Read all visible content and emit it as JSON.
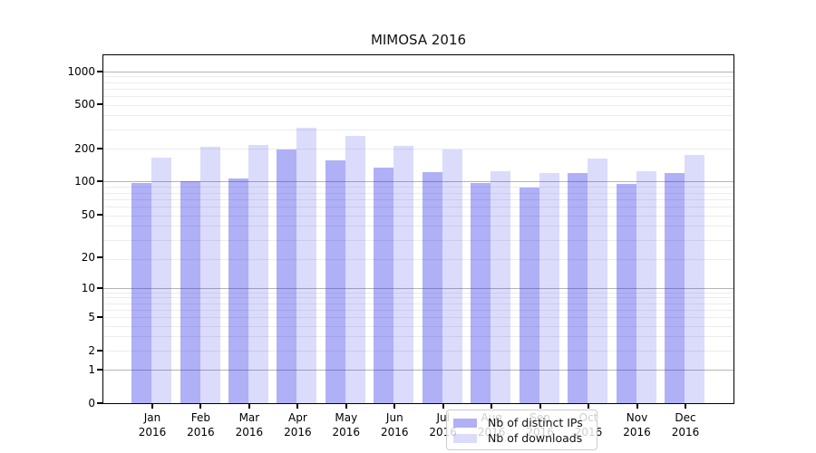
{
  "title": "MIMOSA 2016",
  "chart_data": {
    "type": "bar",
    "title": "MIMOSA 2016",
    "categories": [
      "Jan 2016",
      "Feb 2016",
      "Mar 2016",
      "Apr 2016",
      "May 2016",
      "Jun 2016",
      "Jul 2016",
      "Aug 2016",
      "Sep 2016",
      "Oct 2016",
      "Nov 2016",
      "Dec 2016"
    ],
    "series": [
      {
        "name": "Nb of distinct IPs",
        "color": "rgba(30,30,232,0.35)",
        "values": [
          97,
          101,
          107,
          197,
          155,
          134,
          122,
          96,
          88,
          119,
          95,
          120
        ]
      },
      {
        "name": "Nb of downloads",
        "color": "rgba(30,30,232,0.16)",
        "values": [
          165,
          207,
          217,
          307,
          258,
          210,
          197,
          124,
          119,
          162,
          125,
          175
        ]
      }
    ],
    "xlabel": "",
    "ylabel": "",
    "y_ticks": [
      0,
      1,
      2,
      5,
      10,
      20,
      50,
      100,
      200,
      500,
      1000
    ],
    "y_major_grid_values": [
      1,
      10,
      100,
      1000
    ],
    "y_scale": "log10(value+1)",
    "ylim": [
      0,
      1430
    ],
    "grid": "on",
    "legend_position": "lower-center",
    "colors": {
      "bar_dark": "#aeaef6",
      "bar_light": "#dadafb",
      "major_grid": "#b4b4b4",
      "minor_grid": "#ececec"
    }
  }
}
